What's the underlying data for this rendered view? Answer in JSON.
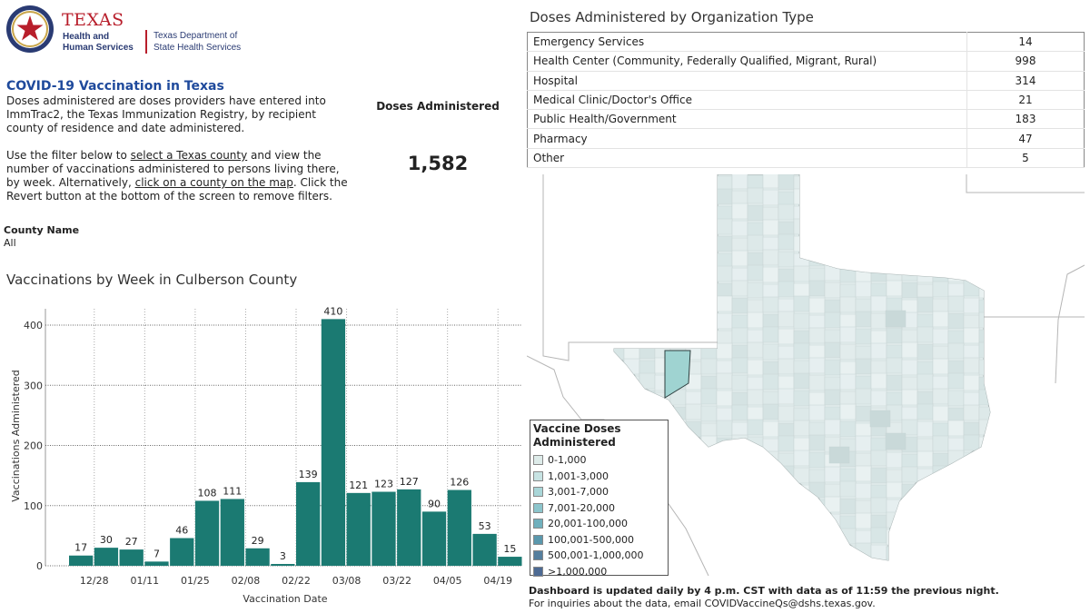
{
  "header": {
    "logo_texas": "TEXAS",
    "logo_hhs": "Health and Human Services",
    "logo_dshs": "Texas Department of State Health Services"
  },
  "intro": {
    "title": "COVID-19 Vaccination in Texas",
    "p1": "Doses administered are doses providers have entered into ImmTrac2, the Texas Immunization Registry, by recipient county of residence and date administered.",
    "p2_a": "Use the filter below to ",
    "p2_link1": "select a Texas county",
    "p2_b": " and view the number of vaccinations administered to persons living there, by week. Alternatively, ",
    "p2_link2": "click on a county on the map",
    "p2_c": ". Click the Revert button at the bottom of the screen to remove filters."
  },
  "kpi": {
    "label": "Doses Administered",
    "value": "1,582"
  },
  "filter": {
    "label": "County Name",
    "value": "All"
  },
  "chart_title": "Vaccinations by Week in Culberson County",
  "chart_data": {
    "type": "bar",
    "title": "Vaccinations by Week in Culberson County",
    "xlabel": "Vaccination Date",
    "ylabel": "Vaccinations Administered",
    "ylim": [
      0,
      430
    ],
    "yticks": [
      0,
      100,
      200,
      300,
      400
    ],
    "xtick_labels": [
      "12/28",
      "01/11",
      "01/25",
      "02/08",
      "02/22",
      "03/08",
      "03/22",
      "04/05",
      "04/19"
    ],
    "values": [
      17,
      30,
      27,
      7,
      46,
      108,
      111,
      29,
      3,
      139,
      410,
      121,
      123,
      127,
      90,
      126,
      53,
      15
    ],
    "bar_color": "#1b7a72",
    "grid": "horizontal dotted",
    "legend": "none"
  },
  "org_table": {
    "title": "Doses Administered by Organization Type",
    "rows": [
      {
        "label": "Emergency Services",
        "value": "14"
      },
      {
        "label": "Health Center (Community, Federally Qualified, Migrant, Rural)",
        "value": "998"
      },
      {
        "label": "Hospital",
        "value": "314"
      },
      {
        "label": "Medical Clinic/Doctor's Office",
        "value": "21"
      },
      {
        "label": "Public Health/Government",
        "value": "183"
      },
      {
        "label": "Pharmacy",
        "value": "47"
      },
      {
        "label": "Other",
        "value": "5"
      }
    ]
  },
  "legend": {
    "title": "Vaccine Doses Administered",
    "items": [
      {
        "label": "0-1,000",
        "color": "#ddebe9"
      },
      {
        "label": "1,001-3,000",
        "color": "#c7e3e3"
      },
      {
        "label": "3,001-7,000",
        "color": "#a9d6d8"
      },
      {
        "label": "7,001-20,000",
        "color": "#8cc5cc"
      },
      {
        "label": "20,001-100,000",
        "color": "#70b0bd"
      },
      {
        "label": "100,001-500,000",
        "color": "#5a98ad"
      },
      {
        "label": "500,001-1,000,000",
        "color": "#557f9e"
      },
      {
        "label": ">1,000,000",
        "color": "#4d6a93"
      }
    ]
  },
  "map": {
    "selected_county": "Culberson",
    "selected_color": "#9fd3d1",
    "texas_fill": "#e4eeee",
    "land_color": "#ffffff",
    "border_color": "#999999"
  },
  "footer": {
    "line1": "Dashboard is updated daily by 4 p.m. CST with data as of 11:59 the previous night.",
    "line2": "For inquiries about the data, email COVIDVaccineQs@dshs.texas.gov."
  }
}
